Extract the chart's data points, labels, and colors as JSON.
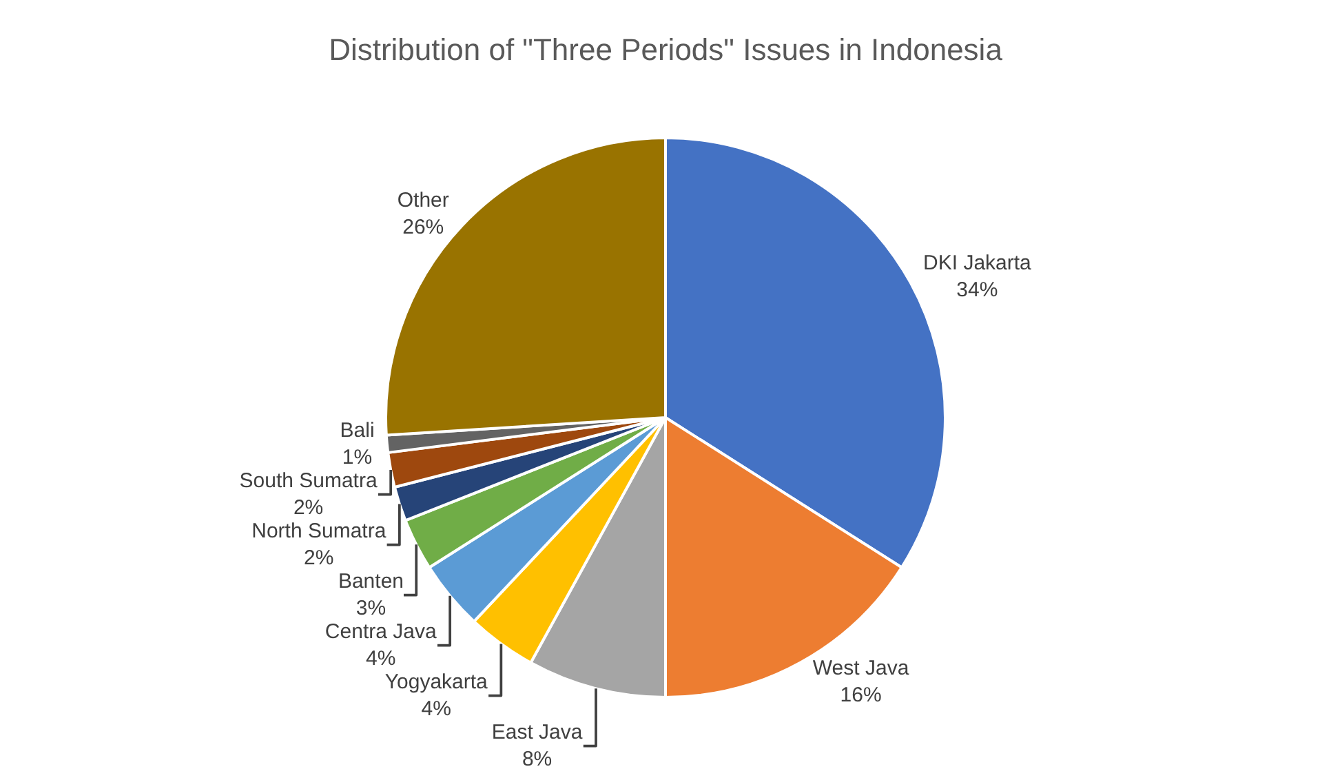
{
  "chart_data": {
    "type": "pie",
    "title": "Distribution of \"Three Periods\" Issues in Indonesia",
    "categories": [
      "DKI Jakarta",
      "West Java",
      "East Java",
      "Yogyakarta",
      "Centra Java",
      "Banten",
      "North Sumatra",
      "South Sumatra",
      "Bali",
      "Other"
    ],
    "values": [
      34,
      16,
      8,
      4,
      4,
      3,
      2,
      2,
      1,
      26
    ],
    "value_labels": [
      "34%",
      "16%",
      "8%",
      "4%",
      "4%",
      "3%",
      "2%",
      "2%",
      "1%",
      "26%"
    ],
    "colors": [
      "#4472c4",
      "#ed7d31",
      "#a5a5a5",
      "#ffc000",
      "#5b9bd5",
      "#70ad47",
      "#264478",
      "#9e480e",
      "#636363",
      "#997300"
    ],
    "legend": false
  }
}
